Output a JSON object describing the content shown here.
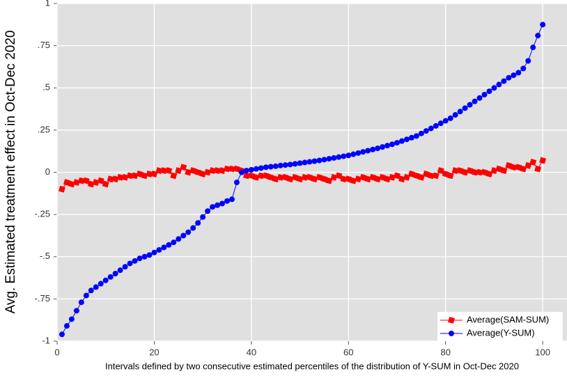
{
  "chart_data": {
    "type": "line",
    "x_label": "Intervals defined by two consecutive estimated percentiles of the distribution of Y-SUM in Oct-Dec 2020",
    "y_label": "Avg. Estimated treatment effect in Oct-Dec 2020",
    "x": [
      1,
      2,
      3,
      4,
      5,
      6,
      7,
      8,
      9,
      10,
      11,
      12,
      13,
      14,
      15,
      16,
      17,
      18,
      19,
      20,
      21,
      22,
      23,
      24,
      25,
      26,
      27,
      28,
      29,
      30,
      31,
      32,
      33,
      34,
      35,
      36,
      37,
      38,
      39,
      40,
      41,
      42,
      43,
      44,
      45,
      46,
      47,
      48,
      49,
      50,
      51,
      52,
      53,
      54,
      55,
      56,
      57,
      58,
      59,
      60,
      61,
      62,
      63,
      64,
      65,
      66,
      67,
      68,
      69,
      70,
      71,
      72,
      73,
      74,
      75,
      76,
      77,
      78,
      79,
      80,
      81,
      82,
      83,
      84,
      85,
      86,
      87,
      88,
      89,
      90,
      91,
      92,
      93,
      94,
      95,
      96,
      97,
      98,
      99,
      100
    ],
    "series": [
      {
        "name": "Average(SAM-SUM)",
        "color": "#ff0000",
        "marker": "square",
        "values": [
          -0.1,
          -0.06,
          -0.07,
          -0.06,
          -0.05,
          -0.05,
          -0.07,
          -0.06,
          -0.05,
          -0.07,
          -0.04,
          -0.04,
          -0.03,
          -0.03,
          -0.02,
          -0.02,
          -0.01,
          -0.02,
          -0.01,
          -0.01,
          0.01,
          0.01,
          0.01,
          -0.02,
          0.01,
          0.03,
          0.0,
          0.01,
          0.0,
          -0.01,
          0.0,
          0.01,
          0.01,
          0.01,
          0.02,
          0.02,
          0.02,
          0.01,
          -0.02,
          -0.02,
          -0.03,
          -0.02,
          -0.02,
          -0.03,
          -0.04,
          -0.03,
          -0.03,
          -0.04,
          -0.03,
          -0.04,
          -0.03,
          -0.03,
          -0.04,
          -0.03,
          -0.04,
          -0.05,
          -0.03,
          -0.02,
          -0.04,
          -0.04,
          -0.05,
          -0.04,
          -0.03,
          -0.04,
          -0.03,
          -0.04,
          -0.03,
          -0.04,
          -0.03,
          -0.02,
          -0.04,
          -0.03,
          -0.01,
          -0.02,
          -0.03,
          -0.01,
          -0.02,
          -0.02,
          0.01,
          -0.01,
          -0.02,
          0.01,
          0.01,
          0.0,
          0.01,
          0.0,
          0.0,
          0.0,
          -0.01,
          0.01,
          0.02,
          0.01,
          0.04,
          0.03,
          0.03,
          0.02,
          0.04,
          0.06,
          0.02,
          0.07
        ]
      },
      {
        "name": "Average(Y-SUM)",
        "color": "#0000ff",
        "marker": "circle",
        "values": [
          -0.96,
          -0.91,
          -0.87,
          -0.82,
          -0.77,
          -0.73,
          -0.7,
          -0.68,
          -0.66,
          -0.64,
          -0.62,
          -0.6,
          -0.58,
          -0.56,
          -0.54,
          -0.525,
          -0.51,
          -0.5,
          -0.49,
          -0.475,
          -0.46,
          -0.445,
          -0.43,
          -0.415,
          -0.395,
          -0.375,
          -0.355,
          -0.33,
          -0.3,
          -0.265,
          -0.23,
          -0.205,
          -0.195,
          -0.185,
          -0.17,
          -0.16,
          -0.06,
          0.0,
          0.01,
          0.015,
          0.02,
          0.025,
          0.03,
          0.033,
          0.036,
          0.04,
          0.043,
          0.046,
          0.05,
          0.054,
          0.058,
          0.062,
          0.066,
          0.07,
          0.075,
          0.08,
          0.085,
          0.09,
          0.095,
          0.1,
          0.107,
          0.114,
          0.121,
          0.128,
          0.135,
          0.142,
          0.15,
          0.158,
          0.166,
          0.175,
          0.185,
          0.195,
          0.205,
          0.215,
          0.23,
          0.245,
          0.26,
          0.275,
          0.29,
          0.305,
          0.32,
          0.34,
          0.36,
          0.38,
          0.4,
          0.42,
          0.44,
          0.46,
          0.48,
          0.5,
          0.52,
          0.54,
          0.56,
          0.575,
          0.59,
          0.615,
          0.66,
          0.74,
          0.81,
          0.875
        ]
      }
    ],
    "xlim": [
      0,
      105
    ],
    "xticks": [
      0,
      20,
      40,
      60,
      80,
      100
    ],
    "ylim": [
      -1,
      1
    ],
    "yticks": [
      -1,
      {
        "value": -0.75,
        "label": "-.75"
      },
      {
        "value": -0.5,
        "label": "-.5"
      },
      {
        "value": -0.25,
        "label": "-.25"
      },
      0,
      {
        "value": 0.25,
        "label": ".25"
      },
      {
        "value": 0.5,
        "label": ".5"
      },
      {
        "value": 0.75,
        "label": ".75"
      },
      1
    ],
    "grid": true,
    "legend": "lower right"
  }
}
